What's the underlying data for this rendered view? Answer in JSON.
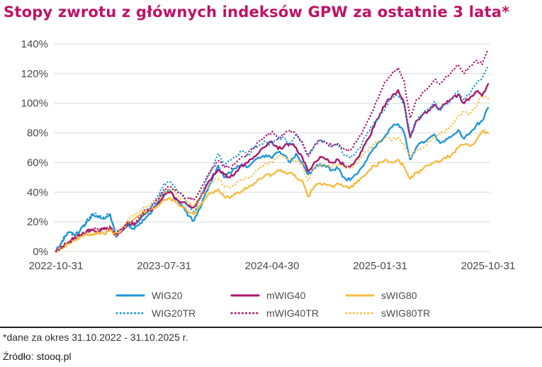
{
  "page": {
    "title": "Stopy zwrotu z głównych indeksów GPW za ostatnie 3 lata*",
    "footnote": "*dane za okres 31.10.2022 - 31.10.2025 r.",
    "source": "Źródło: stooq.pl"
  },
  "colors": {
    "title": "#BE1266",
    "axis_text": "#4a4a4a",
    "gridline": "#D8D8D8",
    "legend_text": "#4d4d4d",
    "divider": "#1f1f1f",
    "wig20_blue": "#2196D6",
    "mwig40_magenta": "#A8176B",
    "swig80_orange": "#F7BC44"
  },
  "chart_data": {
    "type": "line",
    "title": "Stopy zwrotu z głównych indeksów GPW za ostatnie 3 lata*",
    "xlabel": "",
    "ylabel": "",
    "x_unit": "months since 2022-10-31",
    "x_step": 0.5,
    "x_range": [
      0,
      36
    ],
    "xtick_positions": [
      0,
      9,
      18,
      27,
      36
    ],
    "xtick_labels": [
      "2022-10-31",
      "2023-07-31",
      "2024-04-30",
      "2025-01-31",
      "2025-10-31"
    ],
    "ytick_labels": [
      "0%",
      "20%",
      "40%",
      "60%",
      "80%",
      "100%",
      "120%",
      "140%"
    ],
    "ylim": [
      0,
      140
    ],
    "grid": "horizontal",
    "legend_position": "bottom",
    "series": [
      {
        "name": "WIG20",
        "color": "#2196D6",
        "style": "solid",
        "values": [
          0,
          7,
          13,
          11,
          14,
          19,
          25,
          23,
          22,
          25,
          10,
          14,
          18,
          15,
          19,
          23,
          27,
          33,
          40,
          41,
          35,
          31,
          24,
          21,
          29,
          40,
          48,
          58,
          50,
          53,
          56,
          59,
          57,
          61,
          63,
          65,
          63,
          67,
          65,
          60,
          66,
          60,
          52,
          56,
          59,
          57,
          55,
          56,
          50,
          48,
          52,
          57,
          64,
          70,
          74,
          79,
          84,
          86,
          80,
          62,
          70,
          74,
          76,
          79,
          73,
          76,
          78,
          82,
          76,
          80,
          85,
          88,
          97
        ]
      },
      {
        "name": "mWIG40",
        "color": "#A8176B",
        "style": "solid",
        "values": [
          0,
          3,
          6,
          9,
          11,
          13,
          15,
          14,
          15,
          16,
          11,
          14,
          19,
          18,
          22,
          26,
          28,
          32,
          38,
          40,
          36,
          33,
          31,
          30,
          36,
          44,
          50,
          55,
          52,
          50,
          54,
          58,
          60,
          64,
          68,
          71,
          74,
          69,
          71,
          73,
          70,
          64,
          54,
          60,
          64,
          62,
          60,
          62,
          58,
          57,
          62,
          68,
          76,
          84,
          93,
          100,
          105,
          109,
          100,
          77,
          88,
          92,
          95,
          99,
          96,
          100,
          103,
          106,
          100,
          104,
          108,
          105,
          113
        ]
      },
      {
        "name": "sWIG80",
        "color": "#F7BC44",
        "style": "solid",
        "values": [
          0,
          2,
          5,
          8,
          10,
          12,
          11,
          13,
          12,
          14,
          11,
          15,
          20,
          22,
          25,
          27,
          29,
          31,
          35,
          36,
          33,
          30,
          27,
          25,
          31,
          36,
          40,
          42,
          37,
          36,
          39,
          41,
          43,
          46,
          49,
          52,
          52,
          55,
          54,
          53,
          50,
          48,
          37,
          44,
          46,
          45,
          44,
          46,
          44,
          43,
          46,
          50,
          54,
          58,
          60,
          62,
          60,
          62,
          57,
          49,
          53,
          55,
          58,
          60,
          61,
          63,
          66,
          70,
          72,
          71,
          75,
          81,
          80
        ]
      },
      {
        "name": "WIG20TR",
        "color": "#2196D6",
        "style": "dotted",
        "values": [
          0,
          7,
          13,
          11,
          14,
          20,
          26,
          24,
          23,
          26,
          11,
          15,
          19,
          17,
          21,
          26,
          31,
          38,
          46,
          47,
          42,
          38,
          30,
          27,
          36,
          47,
          56,
          66,
          58,
          61,
          64,
          68,
          65,
          70,
          72,
          74,
          72,
          77,
          76,
          72,
          79,
          73,
          65,
          71,
          75,
          73,
          71,
          72,
          65,
          63,
          67,
          73,
          81,
          87,
          92,
          98,
          103,
          105,
          99,
          79,
          88,
          93,
          96,
          101,
          95,
          99,
          103,
          108,
          102,
          107,
          113,
          117,
          126
        ]
      },
      {
        "name": "mWIG40TR",
        "color": "#A8176B",
        "style": "dotted",
        "values": [
          0,
          3,
          6,
          9,
          11,
          13,
          15,
          15,
          16,
          17,
          12,
          15,
          20,
          19,
          24,
          28,
          31,
          35,
          42,
          44,
          41,
          38,
          36,
          35,
          41,
          49,
          56,
          61,
          58,
          56,
          60,
          64,
          66,
          70,
          75,
          78,
          81,
          76,
          79,
          82,
          79,
          74,
          64,
          71,
          75,
          73,
          71,
          73,
          69,
          68,
          74,
          80,
          89,
          97,
          107,
          115,
          120,
          124,
          115,
          90,
          102,
          107,
          111,
          116,
          113,
          118,
          122,
          126,
          120,
          125,
          129,
          126,
          136
        ]
      },
      {
        "name": "sWIG80TR",
        "color": "#F7BC44",
        "style": "dotted",
        "values": [
          0,
          2,
          5,
          8,
          10,
          12,
          12,
          14,
          13,
          15,
          12,
          16,
          21,
          24,
          27,
          30,
          33,
          35,
          40,
          42,
          39,
          36,
          33,
          31,
          37,
          42,
          47,
          49,
          44,
          43,
          46,
          48,
          50,
          53,
          56,
          60,
          60,
          64,
          63,
          63,
          61,
          59,
          48,
          56,
          59,
          58,
          57,
          59,
          57,
          56,
          59,
          64,
          68,
          73,
          75,
          77,
          75,
          77,
          72,
          63,
          68,
          70,
          74,
          77,
          79,
          82,
          86,
          91,
          94,
          93,
          98,
          105,
          103
        ]
      }
    ]
  }
}
